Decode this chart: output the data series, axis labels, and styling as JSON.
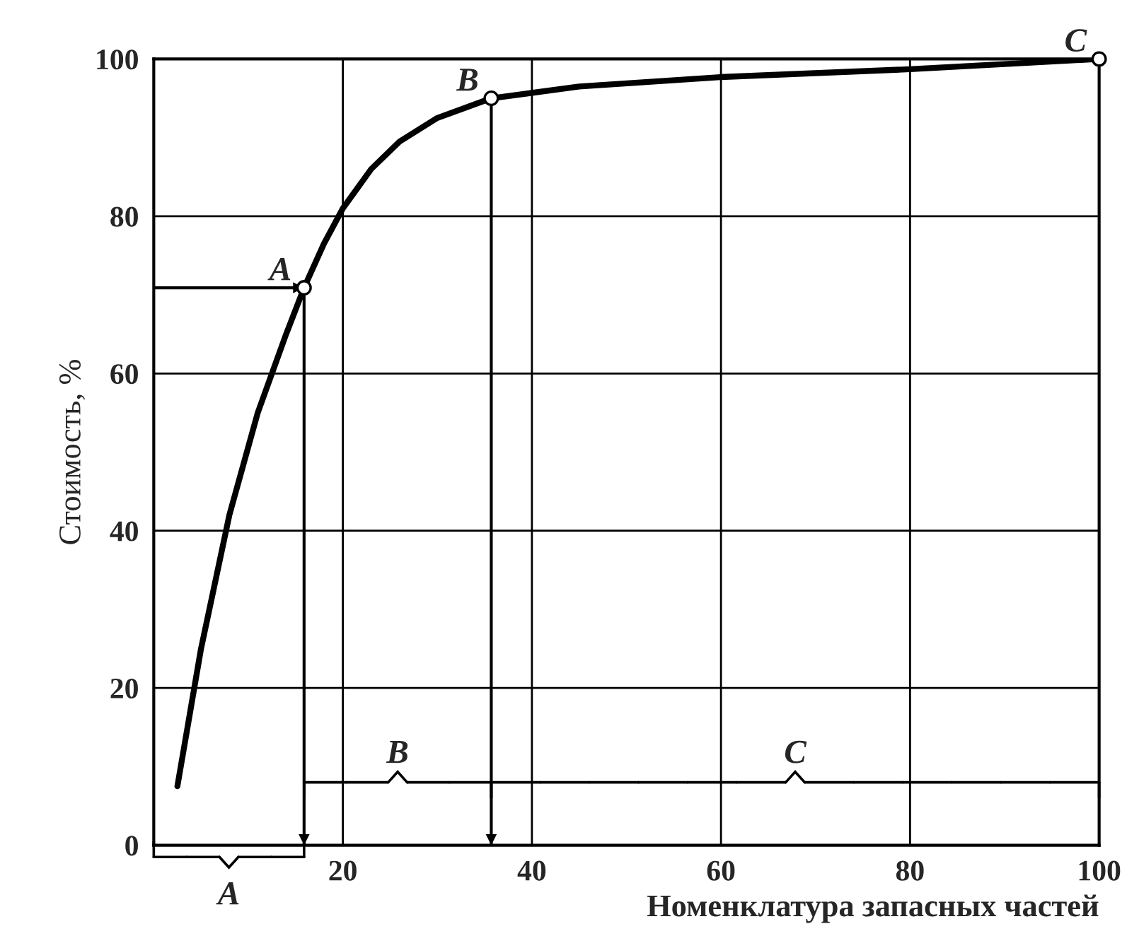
{
  "chart_data": {
    "type": "line",
    "xlabel": "Номенклатура запасных частей",
    "ylabel": "Стоимость, %",
    "xlim": [
      0,
      100
    ],
    "ylim": [
      0,
      100
    ],
    "xticks": [
      20,
      40,
      60,
      80,
      100
    ],
    "yticks": [
      0,
      20,
      40,
      60,
      80,
      100
    ],
    "grid": true,
    "series": [
      {
        "color": "#000000",
        "marker": "none",
        "x": [
          2.5,
          5,
          8,
          11,
          14,
          15.9,
          18,
          20,
          23,
          26,
          30,
          35.7,
          45,
          60,
          80,
          100
        ],
        "values": [
          7.5,
          25,
          42,
          55,
          65,
          70.9,
          76.5,
          81,
          86,
          89.5,
          92.5,
          95,
          96.5,
          97.7,
          98.7,
          100
        ]
      },
      {
        "color": "#000000",
        "marker": "none",
        "x": [
          0,
          15.9
        ],
        "values": [
          70.9,
          70.9
        ]
      },
      {
        "type": "scatter",
        "color": "#000000",
        "marker": "circle",
        "x": [
          15.9,
          35.7,
          100
        ],
        "values": [
          70.9,
          95,
          100
        ]
      }
    ],
    "ref_lines": [
      {
        "axis": "x",
        "value": 15.9,
        "color": "#000000"
      },
      {
        "axis": "x",
        "value": 35.7,
        "color": "#000000"
      }
    ],
    "annotations": [
      {
        "text": "A",
        "x": 15.9,
        "y": 70.9
      },
      {
        "text": "B",
        "x": 35.7,
        "y": 95
      },
      {
        "text": "C",
        "x": 100,
        "y": 100
      },
      "A",
      "B",
      "C"
    ]
  }
}
